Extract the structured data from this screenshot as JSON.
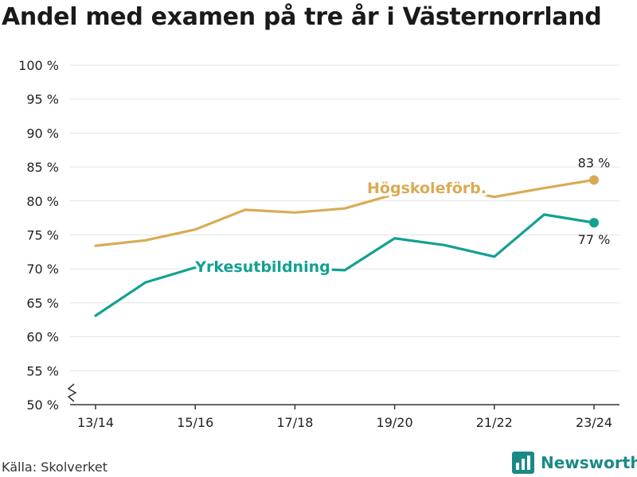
{
  "title": "Andel med examen på tre år i Västernorrland",
  "source": "Källa: Skolverket",
  "brand": {
    "name": "Newsworthy",
    "icon": "newsworthy-logo-icon"
  },
  "colors": {
    "hogskole": "#d9ab55",
    "yrkes": "#12a192",
    "grid": "#e3e3e3",
    "axis": "#333333"
  },
  "chart_data": {
    "type": "line",
    "title": "Andel med examen på tre år i Västernorrland",
    "x": [
      "13/14",
      "14/15",
      "15/16",
      "16/17",
      "17/18",
      "18/19",
      "19/20",
      "20/21",
      "21/22",
      "22/23",
      "23/24"
    ],
    "x_tick_labels": [
      "13/14",
      "15/16",
      "17/18",
      "19/20",
      "21/22",
      "23/24"
    ],
    "ylim": [
      50,
      100
    ],
    "y_ticks": [
      50,
      55,
      60,
      65,
      70,
      75,
      80,
      85,
      90,
      95,
      100
    ],
    "y_tick_labels": [
      "50 %",
      "55 %",
      "60 %",
      "65 %",
      "70 %",
      "75 %",
      "80 %",
      "85 %",
      "90 %",
      "95 %",
      "100 %"
    ],
    "y_axis_break": true,
    "grid": true,
    "series": [
      {
        "name": "Högskoleförb.",
        "key": "hogskole",
        "values": [
          73.4,
          74.2,
          75.8,
          78.7,
          78.3,
          78.9,
          81.0,
          82.0,
          80.6,
          81.9,
          83.1
        ],
        "end_label": "83 %"
      },
      {
        "name": "Yrkesutbildning",
        "key": "yrkes",
        "values": [
          63.1,
          68.0,
          70.2,
          70.4,
          70.1,
          69.8,
          74.5,
          73.5,
          71.8,
          78.0,
          76.8
        ],
        "end_label": "77 %"
      }
    ]
  }
}
